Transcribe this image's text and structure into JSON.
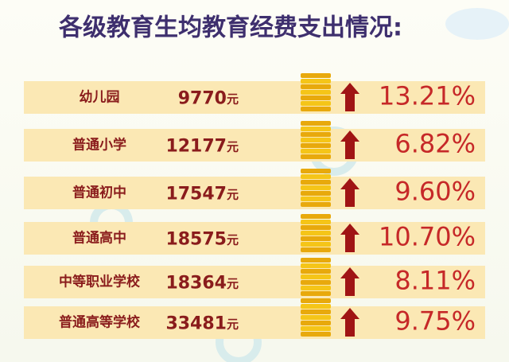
{
  "header": {
    "title": "各级教育生均教育经费支出情况:"
  },
  "table": {
    "unit": "元",
    "rows": [
      {
        "level": "幼儿园",
        "amount": "9770",
        "growth": "13.21%"
      },
      {
        "level": "普通小学",
        "amount": "12177",
        "growth": "6.82%"
      },
      {
        "level": "普通初中",
        "amount": "17547",
        "growth": "9.60%"
      },
      {
        "level": "普通高中",
        "amount": "18575",
        "growth": "10.70%"
      },
      {
        "level": "中等职业学校",
        "amount": "18364",
        "growth": "8.11%"
      },
      {
        "level": "普通高等学校",
        "amount": "33481",
        "growth": "9.75%"
      }
    ]
  }
}
